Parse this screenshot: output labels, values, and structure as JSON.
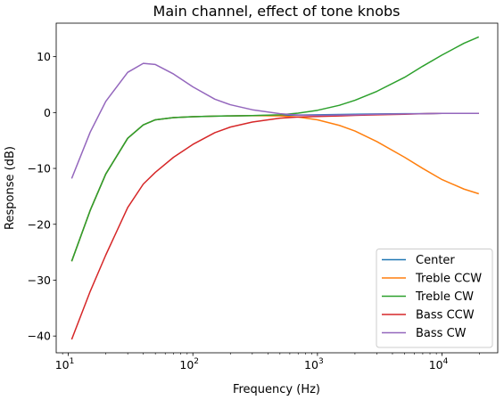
{
  "chart_data": {
    "type": "line",
    "title": "Main channel, effect of tone knobs",
    "xlabel": "Frequency (Hz)",
    "ylabel": "Response (dB)",
    "xscale": "log",
    "xlim": [
      8,
      28000
    ],
    "ylim": [
      -43,
      16
    ],
    "x_ticks": [
      {
        "value": 10,
        "base": "10",
        "exp": "1"
      },
      {
        "value": 100,
        "base": "10",
        "exp": "2"
      },
      {
        "value": 1000,
        "base": "10",
        "exp": "3"
      },
      {
        "value": 10000,
        "base": "10",
        "exp": "4"
      }
    ],
    "y_ticks": [
      {
        "value": -40,
        "label": "−40"
      },
      {
        "value": -30,
        "label": "−30"
      },
      {
        "value": -20,
        "label": "−20"
      },
      {
        "value": -10,
        "label": "−10"
      },
      {
        "value": 0,
        "label": "0"
      },
      {
        "value": 10,
        "label": "10"
      }
    ],
    "grid": false,
    "legend_position": "lower-right",
    "x": [
      10.7,
      15,
      20,
      30,
      40,
      50,
      70,
      100,
      150,
      200,
      300,
      500,
      700,
      1000,
      1500,
      2000,
      3000,
      5000,
      7000,
      10000,
      15000,
      19500
    ],
    "series": [
      {
        "name": "Center",
        "color": "#1f77b4",
        "values": [
          -26.5,
          -17.5,
          -11.0,
          -4.6,
          -2.2,
          -1.3,
          -0.9,
          -0.75,
          -0.65,
          -0.6,
          -0.55,
          -0.5,
          -0.45,
          -0.4,
          -0.35,
          -0.3,
          -0.25,
          -0.2,
          -0.2,
          -0.15,
          -0.15,
          -0.15
        ]
      },
      {
        "name": "Treble CCW",
        "color": "#ff7f0e",
        "values": [
          -26.5,
          -17.5,
          -11.0,
          -4.6,
          -2.2,
          -1.3,
          -0.9,
          -0.75,
          -0.65,
          -0.6,
          -0.55,
          -0.6,
          -0.8,
          -1.3,
          -2.3,
          -3.3,
          -5.2,
          -8.0,
          -10.0,
          -12.0,
          -13.7,
          -14.5
        ]
      },
      {
        "name": "Treble CW",
        "color": "#2ca02c",
        "values": [
          -26.5,
          -17.5,
          -11.0,
          -4.6,
          -2.2,
          -1.3,
          -0.9,
          -0.75,
          -0.65,
          -0.6,
          -0.55,
          -0.4,
          -0.1,
          0.4,
          1.3,
          2.2,
          3.8,
          6.3,
          8.3,
          10.3,
          12.4,
          13.5
        ]
      },
      {
        "name": "Bass CCW",
        "color": "#d62728",
        "values": [
          -40.5,
          -32.0,
          -25.5,
          -17.0,
          -12.8,
          -10.7,
          -8.0,
          -5.7,
          -3.6,
          -2.6,
          -1.7,
          -1.0,
          -0.8,
          -0.7,
          -0.6,
          -0.5,
          -0.4,
          -0.3,
          -0.2,
          -0.15,
          -0.15,
          -0.15
        ]
      },
      {
        "name": "Bass CW",
        "color": "#9467bd",
        "values": [
          -11.7,
          -3.5,
          2.0,
          7.2,
          8.8,
          8.6,
          6.9,
          4.6,
          2.4,
          1.4,
          0.5,
          -0.2,
          -0.45,
          -0.5,
          -0.45,
          -0.4,
          -0.3,
          -0.25,
          -0.2,
          -0.15,
          -0.15,
          -0.15
        ]
      }
    ]
  }
}
